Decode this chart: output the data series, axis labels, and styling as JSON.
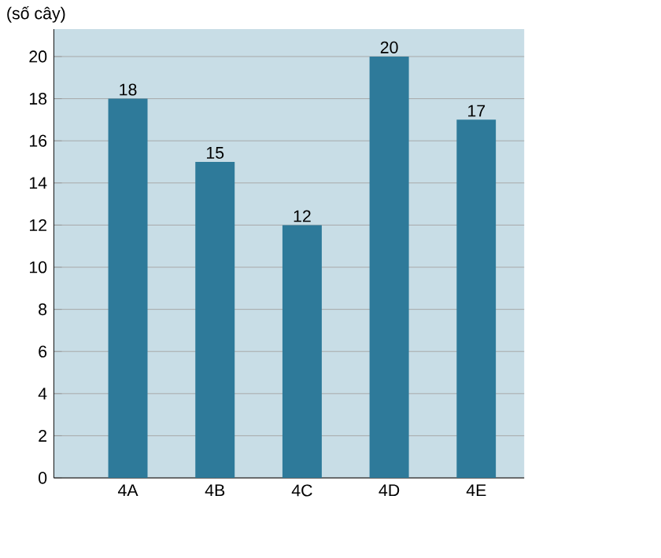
{
  "chart_data": {
    "type": "bar",
    "ylabel": "(số cây)",
    "categories": [
      "4A",
      "4B",
      "4C",
      "4D",
      "4E"
    ],
    "values": [
      18,
      15,
      12,
      20,
      17
    ],
    "color": "#2e7a9a",
    "ylim": [
      0,
      21.3
    ],
    "yticks": [
      0,
      2,
      4,
      6,
      8,
      10,
      12,
      14,
      16,
      18,
      20
    ],
    "grid": "y",
    "data_labels": true
  }
}
